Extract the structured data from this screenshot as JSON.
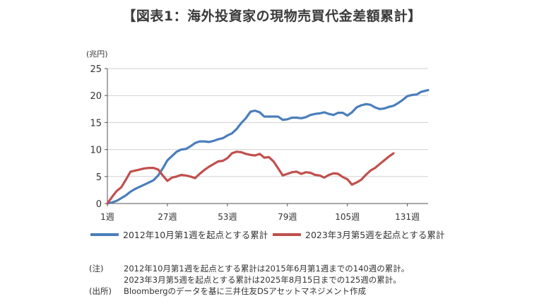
{
  "title": "【図表1：海外投資家の現物売買代金差額累計】",
  "notes": {
    "note_label": "(注)",
    "note_line1": "2012年10月第1週を起点とする累計は2015年6月第1週までの140週の累計。",
    "note_line2": "2023年3月第5週を起点とする累計は2025年8月15日までの125週の累計。",
    "source_label": "(出所)",
    "source_text": "Bloombergのデータを基に三井住友DSアセットマネジメント作成"
  },
  "chart_data": {
    "type": "line",
    "ylabel": "(兆円)",
    "xlabel": "",
    "ylim": [
      0,
      25
    ],
    "yticks": [
      0,
      5,
      10,
      15,
      20,
      25
    ],
    "xlim": [
      1,
      140
    ],
    "xticks": [
      1,
      27,
      53,
      79,
      105,
      131
    ],
    "xtick_labels": [
      "1週",
      "27週",
      "53週",
      "79週",
      "105週",
      "131週"
    ],
    "grid": "horizontal",
    "legend_position": "bottom",
    "series": [
      {
        "name": "2012年10月第1週を起点とする累計",
        "color": "#4a7ebb",
        "x": [
          1,
          3,
          5,
          7,
          9,
          11,
          13,
          15,
          17,
          19,
          21,
          23,
          25,
          27,
          29,
          31,
          33,
          35,
          37,
          39,
          41,
          43,
          45,
          47,
          49,
          51,
          53,
          55,
          57,
          59,
          61,
          63,
          65,
          67,
          69,
          71,
          73,
          75,
          77,
          79,
          81,
          83,
          85,
          87,
          89,
          91,
          93,
          95,
          97,
          99,
          101,
          103,
          105,
          107,
          109,
          111,
          113,
          115,
          117,
          119,
          121,
          123,
          125,
          127,
          129,
          131,
          133,
          135,
          137,
          139,
          140
        ],
        "y": [
          0,
          0.2,
          0.5,
          1.0,
          1.5,
          2.2,
          2.7,
          3.1,
          3.5,
          3.9,
          4.3,
          5.2,
          6.5,
          8.0,
          8.8,
          9.6,
          10.0,
          10.1,
          10.6,
          11.2,
          11.5,
          11.5,
          11.4,
          11.6,
          11.9,
          12.1,
          12.6,
          13.0,
          13.8,
          14.9,
          15.8,
          17.0,
          17.2,
          16.9,
          16.1,
          16.1,
          16.1,
          16.1,
          15.5,
          15.6,
          15.9,
          15.9,
          15.8,
          16.0,
          16.4,
          16.6,
          16.7,
          16.9,
          16.6,
          16.4,
          16.8,
          16.8,
          16.3,
          16.9,
          17.8,
          18.2,
          18.4,
          18.3,
          17.8,
          17.5,
          17.6,
          17.9,
          18.1,
          18.6,
          19.2,
          19.9,
          20.1,
          20.2,
          20.7,
          20.9,
          21.0
        ]
      },
      {
        "name": "2023年3月第5週を起点とする累計",
        "color": "#c0504d",
        "x": [
          1,
          3,
          5,
          7,
          9,
          11,
          13,
          15,
          17,
          19,
          21,
          23,
          25,
          27,
          29,
          31,
          33,
          35,
          37,
          39,
          41,
          43,
          45,
          47,
          49,
          51,
          53,
          55,
          57,
          59,
          61,
          63,
          65,
          67,
          69,
          71,
          73,
          75,
          77,
          79,
          81,
          83,
          85,
          87,
          89,
          91,
          93,
          95,
          97,
          99,
          101,
          103,
          105,
          107,
          109,
          111,
          113,
          115,
          117,
          119,
          121,
          123,
          125
        ],
        "y": [
          0,
          1.2,
          2.3,
          3.0,
          4.4,
          5.9,
          6.1,
          6.3,
          6.5,
          6.6,
          6.6,
          6.3,
          5.2,
          4.2,
          4.8,
          5.0,
          5.3,
          5.2,
          5.0,
          4.7,
          5.5,
          6.2,
          6.8,
          7.3,
          7.8,
          7.9,
          8.4,
          9.3,
          9.6,
          9.5,
          9.2,
          9.0,
          8.9,
          9.2,
          8.5,
          8.6,
          7.8,
          6.5,
          5.2,
          5.5,
          5.8,
          5.9,
          5.5,
          5.8,
          5.7,
          5.3,
          5.2,
          4.8,
          5.3,
          5.6,
          5.5,
          4.9,
          4.5,
          3.5,
          3.9,
          4.4,
          5.3,
          6.1,
          6.6,
          7.3,
          8.0,
          8.7,
          9.3
        ]
      }
    ]
  }
}
